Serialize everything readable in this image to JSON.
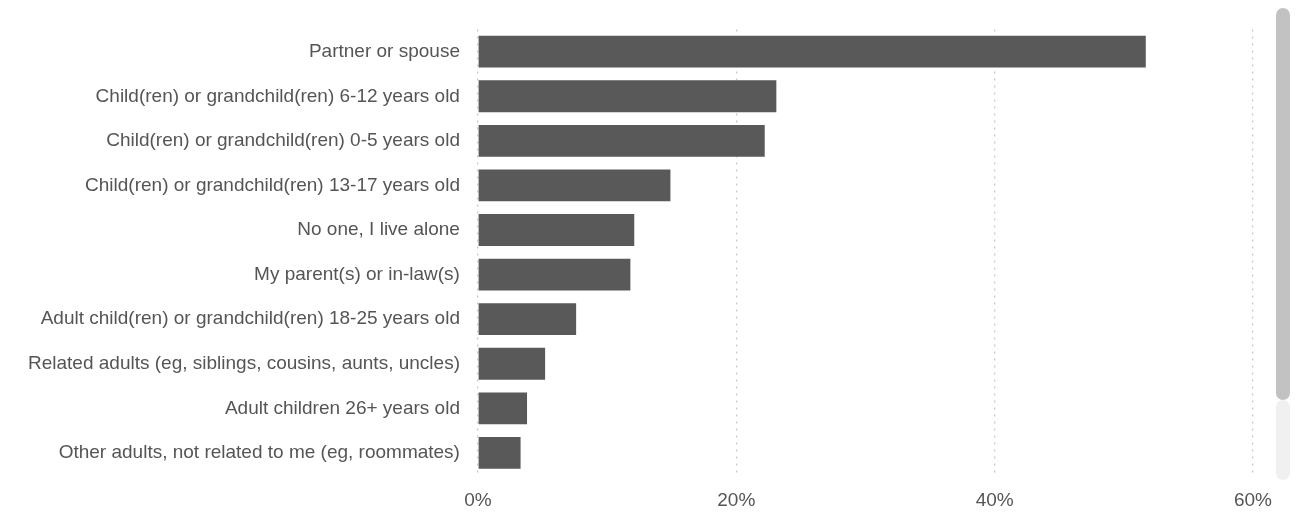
{
  "chart_data": {
    "type": "bar",
    "orientation": "horizontal",
    "categories": [
      "Partner or spouse",
      "Child(ren) or grandchild(ren) 6-12 years old",
      "Child(ren) or grandchild(ren) 0-5 years old",
      "Child(ren) or grandchild(ren) 13-17 years old",
      "No one, I live alone",
      "My parent(s) or in-law(s)",
      "Adult child(ren) or grandchild(ren) 18-25 years old",
      "Related adults (eg, siblings, cousins, aunts, uncles)",
      "Adult children 26+ years old",
      "Other adults, not related to me (eg, roommates)"
    ],
    "values": [
      51.7,
      23.1,
      22.2,
      14.9,
      12.1,
      11.8,
      7.6,
      5.2,
      3.8,
      3.3
    ],
    "color": "#595959",
    "xlim": [
      0,
      60
    ],
    "xticks": [
      {
        "value": 0,
        "label": "0%"
      },
      {
        "value": 20,
        "label": "20%"
      },
      {
        "value": 40,
        "label": "40%"
      },
      {
        "value": 60,
        "label": "60%"
      }
    ],
    "grid": "x",
    "legend": false
  }
}
